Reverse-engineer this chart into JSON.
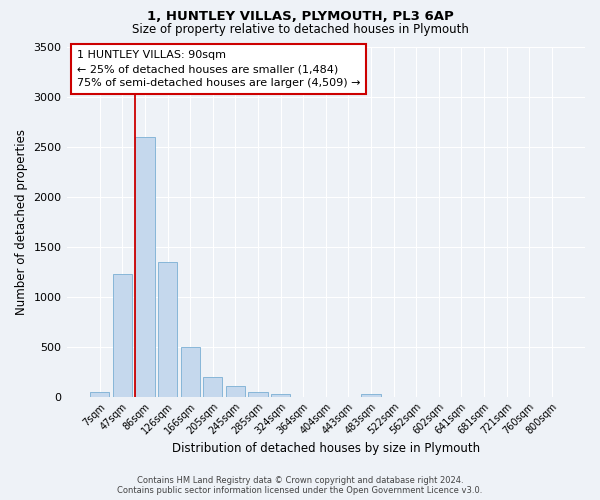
{
  "title1": "1, HUNTLEY VILLAS, PLYMOUTH, PL3 6AP",
  "title2": "Size of property relative to detached houses in Plymouth",
  "xlabel": "Distribution of detached houses by size in Plymouth",
  "ylabel": "Number of detached properties",
  "categories": [
    "7sqm",
    "47sqm",
    "86sqm",
    "126sqm",
    "166sqm",
    "205sqm",
    "245sqm",
    "285sqm",
    "324sqm",
    "364sqm",
    "404sqm",
    "443sqm",
    "483sqm",
    "522sqm",
    "562sqm",
    "602sqm",
    "641sqm",
    "681sqm",
    "721sqm",
    "760sqm",
    "800sqm"
  ],
  "values": [
    50,
    1230,
    2600,
    1350,
    500,
    200,
    110,
    50,
    30,
    0,
    0,
    0,
    30,
    0,
    0,
    0,
    0,
    0,
    0,
    0,
    0
  ],
  "bar_color": "#c5d8ed",
  "bar_edge_color": "#7aafd4",
  "vline_color": "#cc0000",
  "vline_x_index": 2,
  "annotation_box_text": "1 HUNTLEY VILLAS: 90sqm\n← 25% of detached houses are smaller (1,484)\n75% of semi-detached houses are larger (4,509) →",
  "ylim": [
    0,
    3500
  ],
  "yticks": [
    0,
    500,
    1000,
    1500,
    2000,
    2500,
    3000,
    3500
  ],
  "bg_color": "#eef2f7",
  "grid_color": "#ffffff",
  "footer_line1": "Contains HM Land Registry data © Crown copyright and database right 2024.",
  "footer_line2": "Contains public sector information licensed under the Open Government Licence v3.0."
}
